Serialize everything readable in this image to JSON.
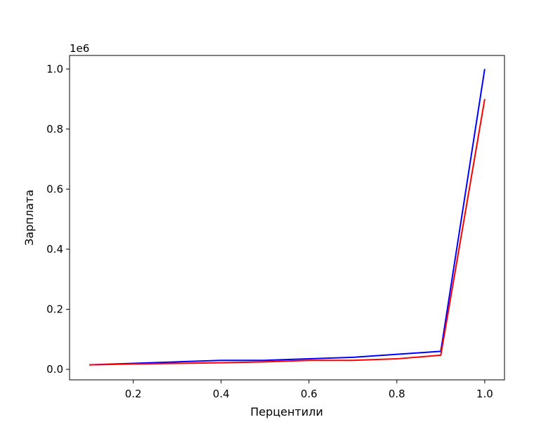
{
  "chart_data": {
    "type": "line",
    "title": "",
    "xlabel": "Перцентили",
    "ylabel": "Зарплата",
    "y_offset_label": "1e6",
    "xlim": [
      0.055,
      1.045
    ],
    "ylim": [
      -0.035,
      1.045
    ],
    "x_ticks": [
      {
        "value": 0.2,
        "label": "0.2"
      },
      {
        "value": 0.4,
        "label": "0.4"
      },
      {
        "value": 0.6,
        "label": "0.6"
      },
      {
        "value": 0.8,
        "label": "0.8"
      },
      {
        "value": 1.0,
        "label": "1.0"
      }
    ],
    "y_ticks": [
      {
        "value": 0.0,
        "label": "0.0"
      },
      {
        "value": 0.2,
        "label": "0.2"
      },
      {
        "value": 0.4,
        "label": "0.4"
      },
      {
        "value": 0.6,
        "label": "0.6"
      },
      {
        "value": 0.8,
        "label": "0.8"
      },
      {
        "value": 1.0,
        "label": "1.0"
      }
    ],
    "grid": false,
    "legend": false,
    "x": [
      0.1,
      0.2,
      0.3,
      0.4,
      0.5,
      0.6,
      0.7,
      0.8,
      0.9,
      1.0
    ],
    "series": [
      {
        "color": "#0000ff",
        "values": [
          0.015,
          0.02,
          0.025,
          0.03,
          0.03,
          0.035,
          0.04,
          0.05,
          0.06,
          1.0
        ]
      },
      {
        "color": "#ff0000",
        "values": [
          0.015,
          0.018,
          0.02,
          0.022,
          0.025,
          0.03,
          0.03,
          0.035,
          0.047,
          0.9
        ]
      }
    ]
  }
}
